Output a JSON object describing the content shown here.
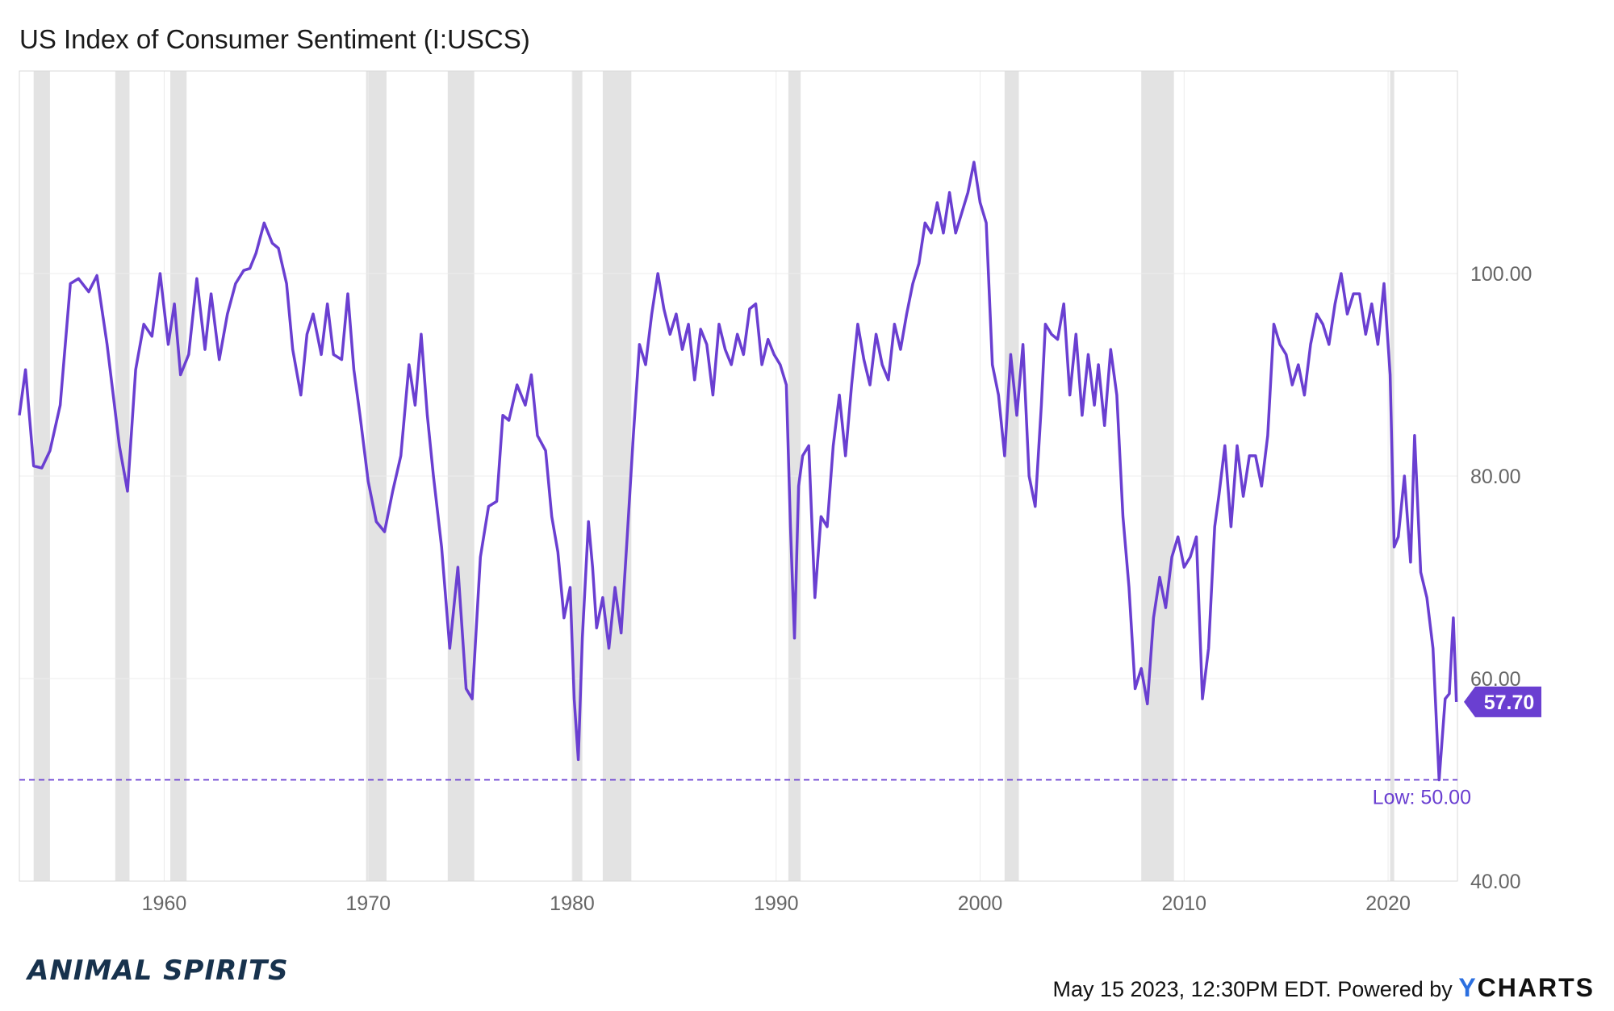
{
  "chart_data": {
    "type": "line",
    "title": "US Index of Consumer Sentiment (I:USCS)",
    "xlabel": "",
    "ylabel": "",
    "xlim": [
      1952.9,
      2023.4
    ],
    "ylim": [
      40,
      120
    ],
    "x_ticks": [
      "1960",
      "1970",
      "1980",
      "1990",
      "2000",
      "2010",
      "2020"
    ],
    "y_ticks": [
      "40.00",
      "60.00",
      "80.00",
      "100.00"
    ],
    "grid": true,
    "line_color": "#6a3fd1",
    "recession_color": "#e3e3e3",
    "recessions": [
      [
        1953.6,
        1954.4
      ],
      [
        1957.6,
        1958.3
      ],
      [
        1960.3,
        1961.1
      ],
      [
        1969.9,
        1970.9
      ],
      [
        1973.9,
        1975.2
      ],
      [
        1980.0,
        1980.5
      ],
      [
        1981.5,
        1982.9
      ],
      [
        1990.6,
        1991.2
      ],
      [
        2001.2,
        2001.9
      ],
      [
        2007.9,
        2009.5
      ],
      [
        2020.1,
        2020.3
      ]
    ],
    "series": [
      {
        "name": "",
        "x": [
          1952.9,
          1953.2,
          1953.6,
          1954.0,
          1954.4,
          1954.9,
          1955.4,
          1955.8,
          1956.3,
          1956.7,
          1957.2,
          1957.8,
          1958.2,
          1958.6,
          1959.0,
          1959.4,
          1959.8,
          1960.2,
          1960.5,
          1960.8,
          1961.2,
          1961.6,
          1962.0,
          1962.3,
          1962.7,
          1963.1,
          1963.5,
          1963.9,
          1964.2,
          1964.5,
          1964.9,
          1965.3,
          1965.6,
          1966.0,
          1966.3,
          1966.7,
          1967.0,
          1967.3,
          1967.7,
          1968.0,
          1968.3,
          1968.7,
          1969.0,
          1969.3,
          1969.6,
          1970.0,
          1970.4,
          1970.8,
          1971.2,
          1971.6,
          1972.0,
          1972.3,
          1972.6,
          1972.9,
          1973.2,
          1973.6,
          1974.0,
          1974.4,
          1974.8,
          1975.1,
          1975.5,
          1975.9,
          1976.3,
          1976.6,
          1976.9,
          1977.3,
          1977.7,
          1978.0,
          1978.3,
          1978.7,
          1979.0,
          1979.3,
          1979.6,
          1979.9,
          1980.1,
          1980.3,
          1980.5,
          1980.8,
          1981.0,
          1981.2,
          1981.5,
          1981.8,
          1982.1,
          1982.4,
          1982.7,
          1983.0,
          1983.3,
          1983.6,
          1983.9,
          1984.2,
          1984.5,
          1984.8,
          1985.1,
          1985.4,
          1985.7,
          1986.0,
          1986.3,
          1986.6,
          1986.9,
          1987.2,
          1987.5,
          1987.8,
          1988.1,
          1988.4,
          1988.7,
          1989.0,
          1989.3,
          1989.6,
          1989.9,
          1990.2,
          1990.5,
          1990.7,
          1990.9,
          1991.1,
          1991.3,
          1991.6,
          1991.9,
          1992.2,
          1992.5,
          1992.8,
          1993.1,
          1993.4,
          1993.7,
          1994.0,
          1994.3,
          1994.6,
          1994.9,
          1995.2,
          1995.5,
          1995.8,
          1996.1,
          1996.4,
          1996.7,
          1997.0,
          1997.3,
          1997.6,
          1997.9,
          1998.2,
          1998.5,
          1998.8,
          1999.1,
          1999.4,
          1999.7,
          2000.0,
          2000.3,
          2000.6,
          2000.9,
          2001.2,
          2001.5,
          2001.8,
          2002.1,
          2002.4,
          2002.7,
          2003.0,
          2003.2,
          2003.5,
          2003.8,
          2004.1,
          2004.4,
          2004.7,
          2005.0,
          2005.3,
          2005.6,
          2005.8,
          2006.1,
          2006.4,
          2006.7,
          2007.0,
          2007.3,
          2007.6,
          2007.9,
          2008.2,
          2008.5,
          2008.8,
          2009.1,
          2009.4,
          2009.7,
          2010.0,
          2010.3,
          2010.6,
          2010.9,
          2011.2,
          2011.5,
          2011.7,
          2012.0,
          2012.3,
          2012.6,
          2012.9,
          2013.2,
          2013.5,
          2013.8,
          2014.1,
          2014.4,
          2014.7,
          2015.0,
          2015.3,
          2015.6,
          2015.9,
          2016.2,
          2016.5,
          2016.8,
          2017.1,
          2017.4,
          2017.7,
          2018.0,
          2018.3,
          2018.6,
          2018.9,
          2019.2,
          2019.5,
          2019.8,
          2020.1,
          2020.3,
          2020.5,
          2020.8,
          2021.1,
          2021.3,
          2021.6,
          2021.9,
          2022.2,
          2022.5,
          2022.8,
          2023.0,
          2023.2,
          2023.35
        ],
        "values": [
          86.0,
          90.5,
          81.0,
          80.8,
          82.5,
          87.0,
          99.0,
          99.5,
          98.2,
          99.8,
          93.0,
          83.0,
          78.5,
          90.5,
          95.0,
          93.8,
          100.0,
          93.0,
          97.0,
          90.0,
          92.0,
          99.5,
          92.5,
          98.0,
          91.5,
          96.0,
          99.0,
          100.3,
          100.5,
          102.0,
          105.0,
          103.0,
          102.5,
          99.0,
          92.5,
          88.0,
          94.0,
          96.0,
          92.0,
          97.0,
          92.0,
          91.5,
          98.0,
          90.5,
          86.0,
          79.5,
          75.5,
          74.5,
          78.5,
          82.0,
          91.0,
          87.0,
          94.0,
          86.0,
          80.0,
          73.0,
          63.0,
          71.0,
          59.0,
          58.0,
          72.0,
          77.0,
          77.5,
          86.0,
          85.5,
          89.0,
          87.0,
          90.0,
          84.0,
          82.5,
          76.0,
          72.5,
          66.0,
          69.0,
          58.0,
          52.0,
          64.0,
          75.5,
          71.0,
          65.0,
          68.0,
          63.0,
          69.0,
          64.5,
          74.0,
          84.0,
          93.0,
          91.0,
          96.0,
          100.0,
          96.5,
          94.0,
          96.0,
          92.5,
          95.0,
          89.5,
          94.5,
          93.0,
          88.0,
          95.0,
          92.5,
          91.0,
          94.0,
          92.0,
          96.5,
          97.0,
          91.0,
          93.5,
          92.0,
          91.0,
          89.0,
          75.0,
          64.0,
          79.0,
          82.0,
          83.0,
          68.0,
          76.0,
          75.0,
          83.0,
          88.0,
          82.0,
          89.0,
          95.0,
          91.5,
          89.0,
          94.0,
          91.0,
          89.5,
          95.0,
          92.5,
          96.0,
          99.0,
          101.0,
          105.0,
          104.0,
          107.0,
          104.0,
          108.0,
          104.0,
          106.0,
          108.0,
          111.0,
          107.0,
          105.0,
          91.0,
          88.0,
          82.0,
          92.0,
          86.0,
          93.0,
          80.0,
          77.0,
          87.0,
          95.0,
          94.0,
          93.5,
          97.0,
          88.0,
          94.0,
          86.0,
          92.0,
          87.0,
          91.0,
          85.0,
          92.5,
          88.0,
          76.0,
          69.0,
          59.0,
          61.0,
          57.5,
          66.0,
          70.0,
          67.0,
          72.0,
          74.0,
          71.0,
          72.0,
          74.0,
          58.0,
          63.0,
          75.0,
          78.0,
          83.0,
          75.0,
          83.0,
          78.0,
          82.0,
          82.0,
          79.0,
          84.0,
          95.0,
          93.0,
          92.0,
          89.0,
          91.0,
          88.0,
          93.0,
          96.0,
          95.0,
          93.0,
          97.0,
          100.0,
          96.0,
          98.0,
          98.0,
          94.0,
          97.0,
          93.0,
          99.0,
          90.0,
          73.0,
          74.0,
          80.0,
          71.5,
          84.0,
          70.5,
          68.0,
          63.0,
          50.0,
          58.0,
          58.5,
          66.0,
          57.7
        ]
      }
    ],
    "last_value_label": "57.70",
    "low_value": 50.0,
    "low_label": "Low: 50.00"
  },
  "footer": {
    "timestamp": "May 15 2023, 12:30PM EDT.",
    "powered_by": "Powered by",
    "brand_y": "Y",
    "brand_rest": "CHARTS"
  },
  "brand": {
    "logo_text": "ANIMAL SPIRITS"
  }
}
